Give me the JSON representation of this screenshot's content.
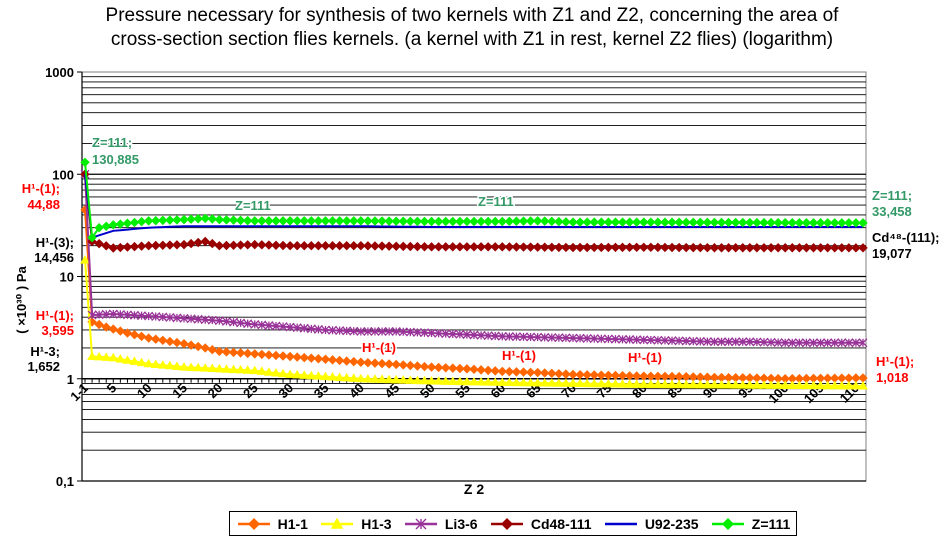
{
  "title_line1": "Pressure necessary for synthesis of two kernels with Z1 and Z2, concerning the area of",
  "title_line2": "cross-section section flies kernels. (a kernel with Z1 in rest, kernel Z2 flies) (logarithm)",
  "colors": {
    "H1-1": "#ff6600",
    "H1-3": "#ffff00",
    "Li3-6": "#993399",
    "Cd48-111": "#990000",
    "U92-235": "#0000cc",
    "Z=111": "#00ee00",
    "label_red": "#ff0000",
    "label_green": "#339966"
  },
  "chart_data": {
    "type": "line",
    "title": "Pressure necessary for synthesis of two kernels with Z1 and Z2, concerning the area of cross-section section flies kernels. (a kernel with Z1 in rest, kernel Z2 flies) (logarithm)",
    "xlabel": "Z 2",
    "ylabel": "( ×10³⁰ ) Pa",
    "y_scale": "log",
    "ylim": [
      0.1,
      1000
    ],
    "xlim": [
      1,
      111
    ],
    "y_tick_labels": [
      "1000",
      "100",
      "10",
      "1",
      "0,1"
    ],
    "x_tick_labels": [
      "1-1",
      "5",
      "10",
      "15",
      "20",
      "25",
      "30",
      "35",
      "40",
      "45",
      "50",
      "55",
      "60",
      "65",
      "70",
      "75",
      "80",
      "85",
      "90",
      "95",
      "100",
      "105",
      "110"
    ],
    "grid": true,
    "legend_position": "bottom",
    "series": [
      {
        "name": "H1-1",
        "color": "#ff6600",
        "marker": "diamond",
        "points": [
          [
            1,
            44.88
          ],
          [
            2,
            3.595
          ],
          [
            4,
            3.2
          ],
          [
            7,
            2.8
          ],
          [
            10,
            2.5
          ],
          [
            15,
            2.2
          ],
          [
            18,
            2.0
          ],
          [
            20,
            1.85
          ],
          [
            25,
            1.75
          ],
          [
            30,
            1.65
          ],
          [
            35,
            1.55
          ],
          [
            40,
            1.45
          ],
          [
            45,
            1.38
          ],
          [
            50,
            1.3
          ],
          [
            55,
            1.25
          ],
          [
            60,
            1.18
          ],
          [
            65,
            1.15
          ],
          [
            70,
            1.1
          ],
          [
            75,
            1.08
          ],
          [
            80,
            1.06
          ],
          [
            85,
            1.05
          ],
          [
            90,
            1.03
          ],
          [
            95,
            1.02
          ],
          [
            100,
            1.0
          ],
          [
            105,
            1.01
          ],
          [
            111,
            1.018
          ]
        ]
      },
      {
        "name": "H1-3",
        "color": "#ffff00",
        "marker": "triangle",
        "points": [
          [
            1,
            14.456
          ],
          [
            2,
            1.652
          ],
          [
            5,
            1.6
          ],
          [
            10,
            1.4
          ],
          [
            15,
            1.3
          ],
          [
            20,
            1.25
          ],
          [
            25,
            1.2
          ],
          [
            30,
            1.1
          ],
          [
            35,
            1.05
          ],
          [
            40,
            1.0
          ],
          [
            50,
            0.95
          ],
          [
            60,
            0.92
          ],
          [
            70,
            0.9
          ],
          [
            80,
            0.88
          ],
          [
            90,
            0.87
          ],
          [
            100,
            0.86
          ],
          [
            111,
            0.85
          ]
        ]
      },
      {
        "name": "Li3-6",
        "color": "#993399",
        "marker": "star",
        "points": [
          [
            1,
            100
          ],
          [
            2,
            4.2
          ],
          [
            5,
            4.3
          ],
          [
            10,
            4.1
          ],
          [
            15,
            3.9
          ],
          [
            20,
            3.7
          ],
          [
            25,
            3.4
          ],
          [
            30,
            3.2
          ],
          [
            35,
            3.0
          ],
          [
            40,
            2.9
          ],
          [
            45,
            2.9
          ],
          [
            50,
            2.8
          ],
          [
            55,
            2.7
          ],
          [
            60,
            2.6
          ],
          [
            65,
            2.55
          ],
          [
            70,
            2.5
          ],
          [
            75,
            2.45
          ],
          [
            80,
            2.4
          ],
          [
            85,
            2.35
          ],
          [
            90,
            2.3
          ],
          [
            95,
            2.3
          ],
          [
            100,
            2.25
          ],
          [
            105,
            2.25
          ],
          [
            111,
            2.25
          ]
        ]
      },
      {
        "name": "Cd48-111",
        "color": "#990000",
        "marker": "diamond",
        "points": [
          [
            1,
            100
          ],
          [
            2,
            22
          ],
          [
            5,
            19
          ],
          [
            10,
            20
          ],
          [
            15,
            20.5
          ],
          [
            18,
            22
          ],
          [
            20,
            20
          ],
          [
            25,
            20.5
          ],
          [
            30,
            20
          ],
          [
            40,
            20
          ],
          [
            50,
            19.5
          ],
          [
            60,
            19.5
          ],
          [
            70,
            19.2
          ],
          [
            80,
            19.3
          ],
          [
            90,
            19.1
          ],
          [
            100,
            19.1
          ],
          [
            111,
            19.077
          ]
        ]
      },
      {
        "name": "U92-235",
        "color": "#0000cc",
        "marker": "none",
        "points": [
          [
            1,
            100
          ],
          [
            2,
            24
          ],
          [
            5,
            28
          ],
          [
            10,
            30
          ],
          [
            15,
            31
          ],
          [
            20,
            31
          ],
          [
            30,
            31
          ],
          [
            40,
            31
          ],
          [
            50,
            30.5
          ],
          [
            60,
            30.5
          ],
          [
            70,
            30.5
          ],
          [
            80,
            30.5
          ],
          [
            90,
            30.5
          ],
          [
            100,
            30.5
          ],
          [
            111,
            30.5
          ]
        ]
      },
      {
        "name": "Z=111",
        "color": "#00ee00",
        "marker": "diamond",
        "points": [
          [
            1,
            130.885
          ],
          [
            2,
            24
          ],
          [
            3,
            30
          ],
          [
            5,
            32
          ],
          [
            10,
            35
          ],
          [
            15,
            36
          ],
          [
            18,
            37
          ],
          [
            20,
            36
          ],
          [
            25,
            35
          ],
          [
            30,
            35
          ],
          [
            40,
            35
          ],
          [
            50,
            34.5
          ],
          [
            60,
            34.5
          ],
          [
            65,
            35
          ],
          [
            70,
            34
          ],
          [
            80,
            34
          ],
          [
            90,
            33.8
          ],
          [
            100,
            33.6
          ],
          [
            111,
            33.458
          ]
        ]
      }
    ],
    "annotations": [
      {
        "text": "Z=111;",
        "color": "#339966"
      },
      {
        "text": "130,885",
        "color": "#339966"
      },
      {
        "text": "H¹-(1);",
        "color": "#ff0000"
      },
      {
        "text": "44,88",
        "color": "#ff0000"
      },
      {
        "text": "H¹-(3);",
        "color": "#000000"
      },
      {
        "text": "14,456",
        "color": "#000000"
      },
      {
        "text": "H¹-(1);",
        "color": "#ff0000"
      },
      {
        "text": "3,595",
        "color": "#ff0000"
      },
      {
        "text": "H¹-3;",
        "color": "#000000"
      },
      {
        "text": "1,652",
        "color": "#000000"
      },
      {
        "text": "Z=111",
        "color": "#339966"
      },
      {
        "text": "Z=111",
        "color": "#339966"
      },
      {
        "text": "H¹-(1)",
        "color": "#ff0000"
      },
      {
        "text": "H¹-(1)",
        "color": "#ff0000"
      },
      {
        "text": "H¹-(1)",
        "color": "#ff0000"
      },
      {
        "text": "Z=111;",
        "color": "#339966"
      },
      {
        "text": "33,458",
        "color": "#339966"
      },
      {
        "text": "Cd⁴⁸-(111);",
        "color": "#000000"
      },
      {
        "text": "19,077",
        "color": "#000000"
      },
      {
        "text": "H¹-(1);",
        "color": "#ff0000"
      },
      {
        "text": "1,018",
        "color": "#ff0000"
      }
    ]
  },
  "legend": [
    {
      "label": "H1-1",
      "color": "#ff6600",
      "marker": "diamond"
    },
    {
      "label": "H1-3",
      "color": "#ffff00",
      "marker": "triangle"
    },
    {
      "label": "Li3-6",
      "color": "#993399",
      "marker": "star"
    },
    {
      "label": "Cd48-111",
      "color": "#990000",
      "marker": "diamond"
    },
    {
      "label": "U92-235",
      "color": "#0000cc",
      "marker": "none"
    },
    {
      "label": "Z=111",
      "color": "#00ee00",
      "marker": "diamond"
    }
  ]
}
